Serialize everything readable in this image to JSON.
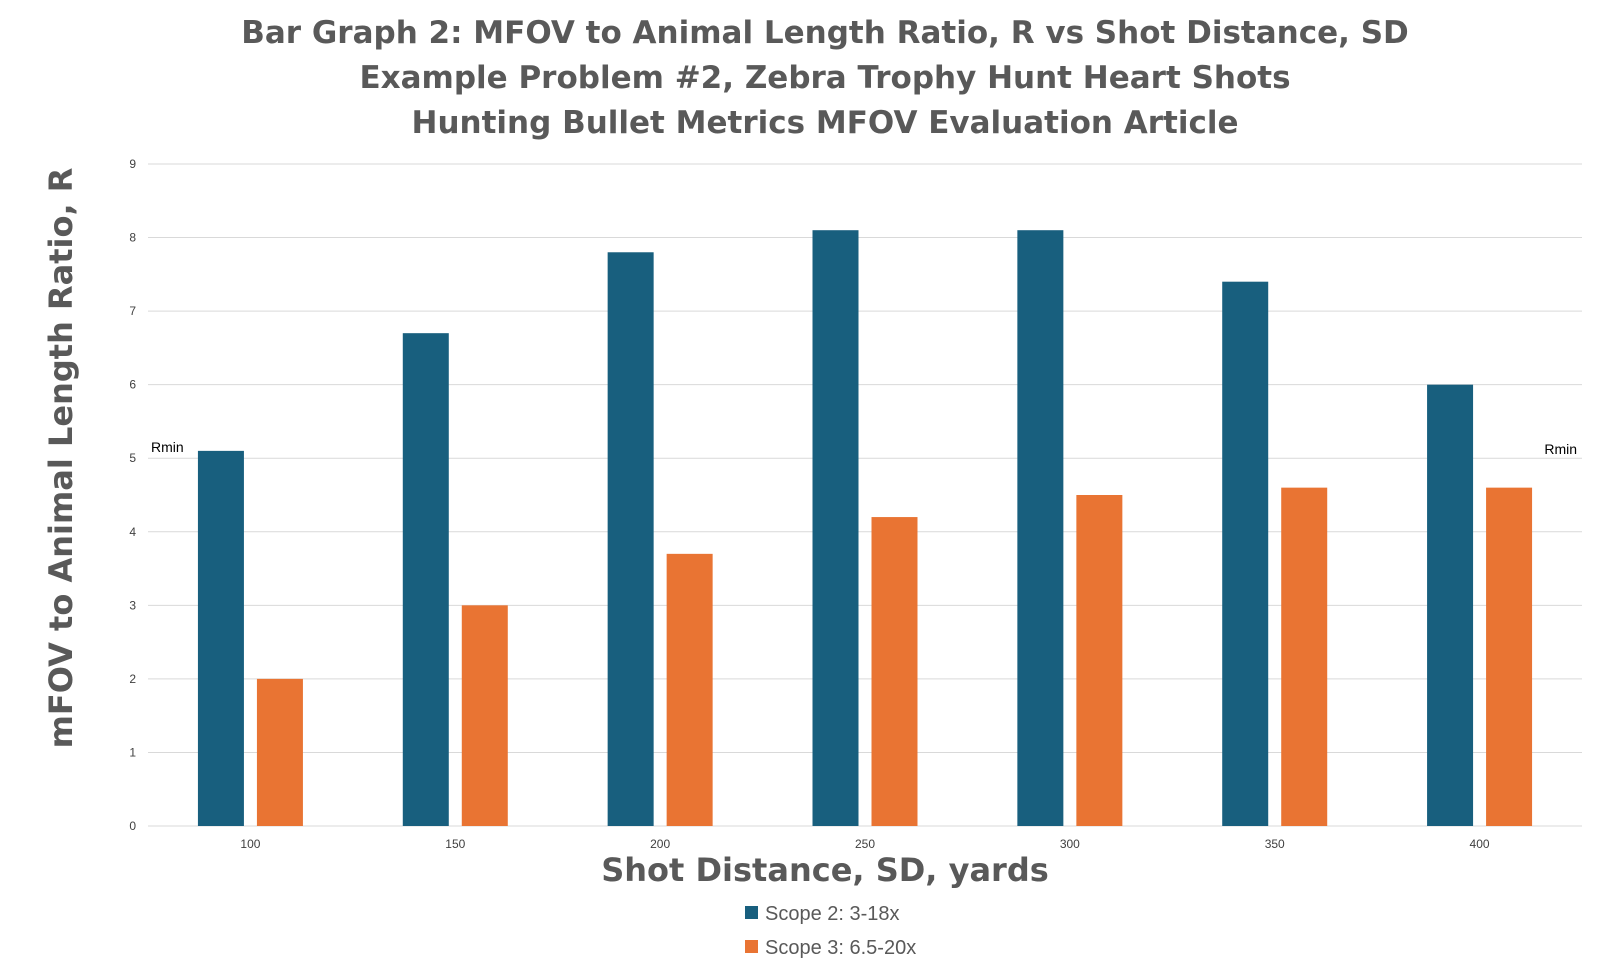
{
  "chart_data": {
    "type": "bar",
    "title_lines": [
      "Bar Graph 2: MFOV to Animal Length Ratio, R vs Shot Distance, SD",
      "Example Problem #2, Zebra Trophy Hunt Heart Shots",
      "Hunting Bullet Metrics MFOV Evaluation Article"
    ],
    "xlabel": "Shot Distance, SD, yards",
    "ylabel": "mFOV to Animal Length Ratio, R",
    "categories": [
      "100",
      "150",
      "200",
      "250",
      "300",
      "350",
      "400"
    ],
    "ylim": [
      0,
      9
    ],
    "yticks": [
      "0",
      "1",
      "2",
      "3",
      "4",
      "5",
      "6",
      "7",
      "8",
      "9"
    ],
    "grid": true,
    "legend_position": "bottom",
    "series": [
      {
        "name": "Scope 2: 3-18x",
        "color": "#185F7E",
        "values": [
          5.1,
          6.7,
          7.8,
          8.1,
          8.1,
          7.4,
          6.0
        ]
      },
      {
        "name": "Scope 3: 6.5-20x",
        "color": "#E97433",
        "values": [
          2.0,
          3.0,
          3.7,
          4.2,
          4.5,
          4.6,
          4.6
        ]
      }
    ],
    "annotations": [
      {
        "text": "Rmin",
        "position": "left"
      },
      {
        "text": "Rmin",
        "position": "right"
      }
    ]
  }
}
